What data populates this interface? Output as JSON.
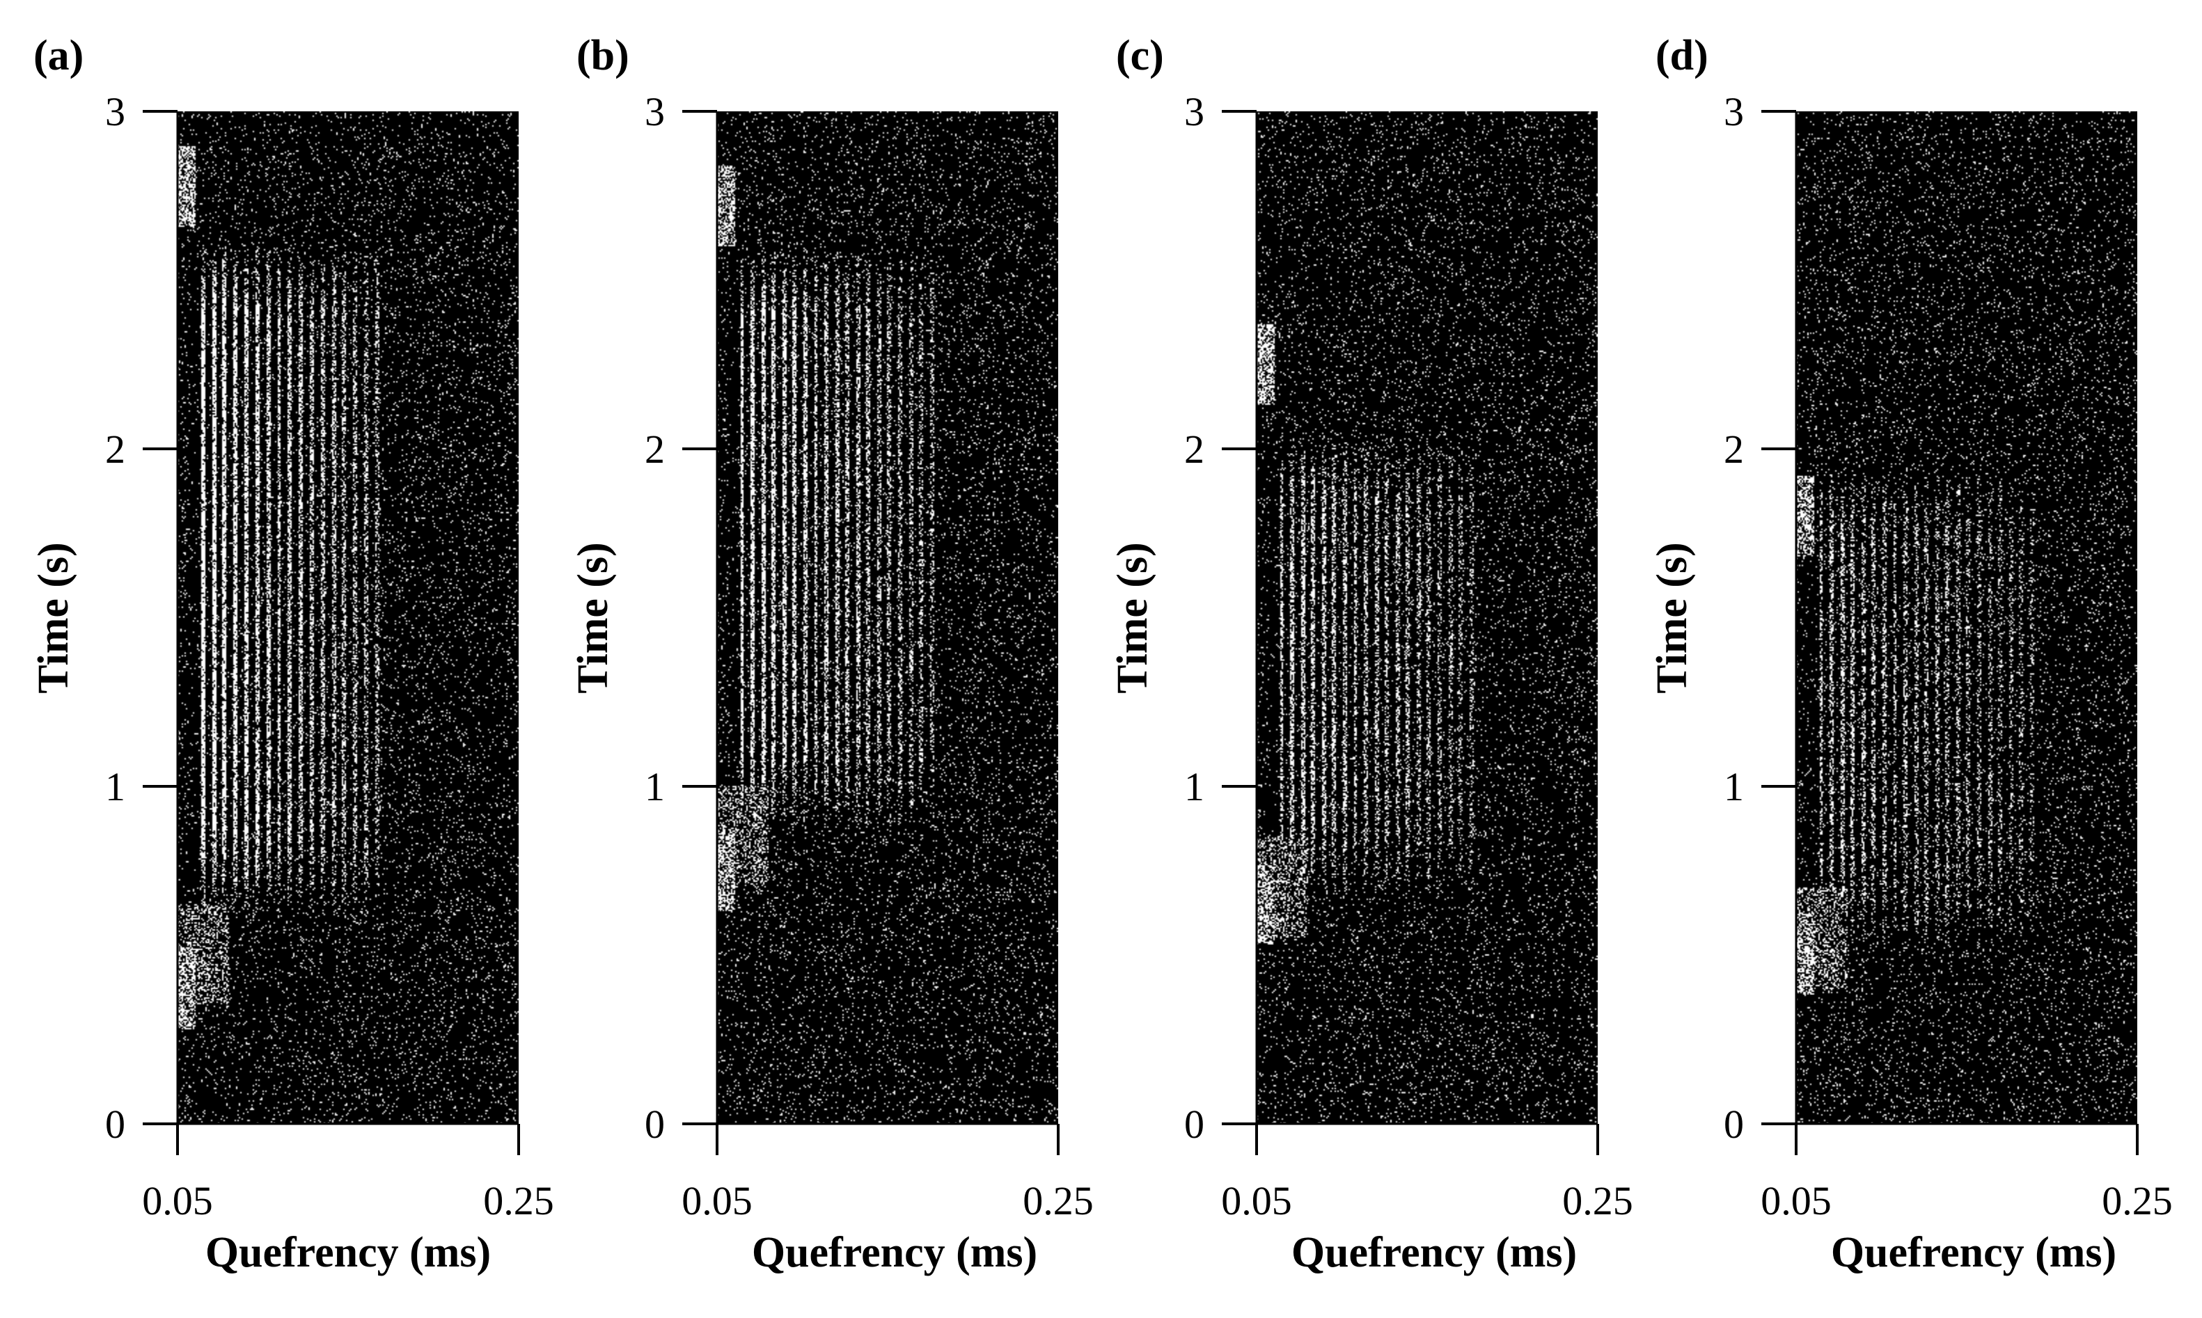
{
  "chart_data": [
    {
      "type": "heatmap",
      "panel_label": "(a)",
      "xlabel": "Quefrency (ms)",
      "ylabel": "Time (s)",
      "xlim": [
        0.05,
        0.25
      ],
      "ylim": [
        0,
        3
      ],
      "x_ticks": [
        "0.05",
        "0.25"
      ],
      "y_ticks": [
        "0",
        "1",
        "2",
        "3"
      ],
      "background": "#000000",
      "foreground": "#ffffff",
      "features": {
        "rahmonic_band": {
          "q_start": 0.057,
          "q_end": 0.17,
          "t_start": 0.6,
          "t_end": 2.62,
          "spacing": 0.0064,
          "intensity": 0.9
        },
        "edge_blob_times": [
          0.4,
          2.78
        ],
        "onset_blob_time": 0.5
      }
    },
    {
      "type": "heatmap",
      "panel_label": "(b)",
      "xlabel": "Quefrency (ms)",
      "ylabel": "Time (s)",
      "xlim": [
        0.05,
        0.25
      ],
      "ylim": [
        0,
        3
      ],
      "x_ticks": [
        "0.05",
        "0.25"
      ],
      "y_ticks": [
        "0",
        "1",
        "2",
        "3"
      ],
      "background": "#000000",
      "foreground": "#ffffff",
      "features": {
        "rahmonic_band": {
          "q_start": 0.057,
          "q_end": 0.18,
          "t_start": 0.85,
          "t_end": 2.6,
          "spacing": 0.0062,
          "intensity": 0.8
        },
        "edge_blob_times": [
          0.75,
          2.72
        ],
        "onset_blob_time": 0.85
      }
    },
    {
      "type": "heatmap",
      "panel_label": "(c)",
      "xlabel": "Quefrency (ms)",
      "ylabel": "Time (s)",
      "xlim": [
        0.05,
        0.25
      ],
      "ylim": [
        0,
        3
      ],
      "x_ticks": [
        "0.05",
        "0.25"
      ],
      "y_ticks": [
        "0",
        "1",
        "2",
        "3"
      ],
      "background": "#000000",
      "foreground": "#ffffff",
      "features": {
        "rahmonic_band": {
          "q_start": 0.057,
          "q_end": 0.18,
          "t_start": 0.65,
          "t_end": 2.05,
          "spacing": 0.0062,
          "intensity": 0.65
        },
        "edge_blob_times": [
          0.65,
          2.25
        ],
        "onset_blob_time": 0.7
      }
    },
    {
      "type": "heatmap",
      "panel_label": "(d)",
      "xlabel": "Quefrency (ms)",
      "ylabel": "Time (s)",
      "xlim": [
        0.05,
        0.25
      ],
      "ylim": [
        0,
        3
      ],
      "x_ticks": [
        "0.05",
        "0.25"
      ],
      "y_ticks": [
        "0",
        "1",
        "2",
        "3"
      ],
      "background": "#000000",
      "foreground": "#ffffff",
      "features": {
        "rahmonic_band": {
          "q_start": 0.057,
          "q_end": 0.19,
          "t_start": 0.5,
          "t_end": 1.95,
          "spacing": 0.0062,
          "intensity": 0.5
        },
        "edge_blob_times": [
          0.5,
          1.8
        ],
        "onset_blob_time": 0.55
      }
    }
  ]
}
